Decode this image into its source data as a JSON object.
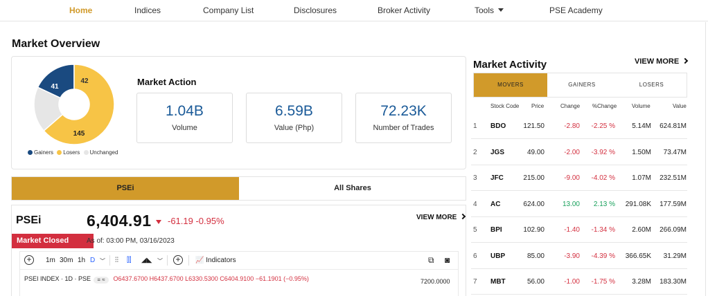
{
  "nav": {
    "items": [
      {
        "label": "Home",
        "active": true
      },
      {
        "label": "Indices"
      },
      {
        "label": "Company List"
      },
      {
        "label": "Disclosures"
      },
      {
        "label": "Broker Activity"
      },
      {
        "label": "Tools"
      },
      {
        "label": "PSE Academy"
      }
    ]
  },
  "overview": {
    "title": "Market Overview",
    "donut": {
      "gainers": "41",
      "losers": "145",
      "unchanged": "42",
      "gainers_value": 41,
      "losers_value": 145,
      "unchanged_value": 42,
      "colors": {
        "gainers": "#1a4a80",
        "losers": "#f7c446",
        "unchanged": "#e6e6e6"
      }
    },
    "legend": {
      "gainers": "Gainers",
      "losers": "Losers",
      "unchanged": "Unchanged"
    },
    "market_action_title": "Market Action",
    "stats": [
      {
        "value": "1.04B",
        "label": "Volume"
      },
      {
        "value": "6.59B",
        "label": "Value (Php)"
      },
      {
        "value": "72.23K",
        "label": "Number of Trades"
      }
    ]
  },
  "index_tabs": {
    "psei": "PSEi",
    "all_shares": "All Shares"
  },
  "psei": {
    "name": "PSEi",
    "value": "6,404.91",
    "change": "-61.19 -0.95%",
    "view_more": "VIEW MORE",
    "status": "Market Closed",
    "as_of": "As of: 03:00 PM, 03/16/2023",
    "toolbar": {
      "intervals": [
        "1m",
        "30m",
        "1h",
        "D"
      ],
      "indicators": "Indicators"
    },
    "chart_legend": {
      "symbol": "PSEI INDEX · 1D · PSE",
      "o": "O6437.6700",
      "h": "H6437.6700",
      "l": "L6330.5300",
      "c": "C6404.9100",
      "chg": "−61.1901 (−0.95%)"
    },
    "price_label": "7200.0000"
  },
  "activity": {
    "title": "Market Activity",
    "view_more": "VIEW MORE",
    "tabs": [
      "MOVERS",
      "GAINERS",
      "LOSERS"
    ],
    "columns": [
      "Stock Code",
      "Price",
      "Change",
      "%Change",
      "Volume",
      "Value"
    ],
    "rows": [
      {
        "rank": "1",
        "code": "BDO",
        "price": "121.50",
        "change": "-2.80",
        "pct": "-2.25 %",
        "volume": "5.14M",
        "value": "624.81M",
        "dir": "neg"
      },
      {
        "rank": "2",
        "code": "JGS",
        "price": "49.00",
        "change": "-2.00",
        "pct": "-3.92 %",
        "volume": "1.50M",
        "value": "73.47M",
        "dir": "neg"
      },
      {
        "rank": "3",
        "code": "JFC",
        "price": "215.00",
        "change": "-9.00",
        "pct": "-4.02 %",
        "volume": "1.07M",
        "value": "232.51M",
        "dir": "neg"
      },
      {
        "rank": "4",
        "code": "AC",
        "price": "624.00",
        "change": "13.00",
        "pct": "2.13 %",
        "volume": "291.08K",
        "value": "177.59M",
        "dir": "pos"
      },
      {
        "rank": "5",
        "code": "BPI",
        "price": "102.90",
        "change": "-1.40",
        "pct": "-1.34 %",
        "volume": "2.60M",
        "value": "266.09M",
        "dir": "neg"
      },
      {
        "rank": "6",
        "code": "UBP",
        "price": "85.00",
        "change": "-3.90",
        "pct": "-4.39 %",
        "volume": "366.65K",
        "value": "31.29M",
        "dir": "neg"
      },
      {
        "rank": "7",
        "code": "MBT",
        "price": "56.00",
        "change": "-1.00",
        "pct": "-1.75 %",
        "volume": "3.28M",
        "value": "183.30M",
        "dir": "neg"
      }
    ]
  }
}
